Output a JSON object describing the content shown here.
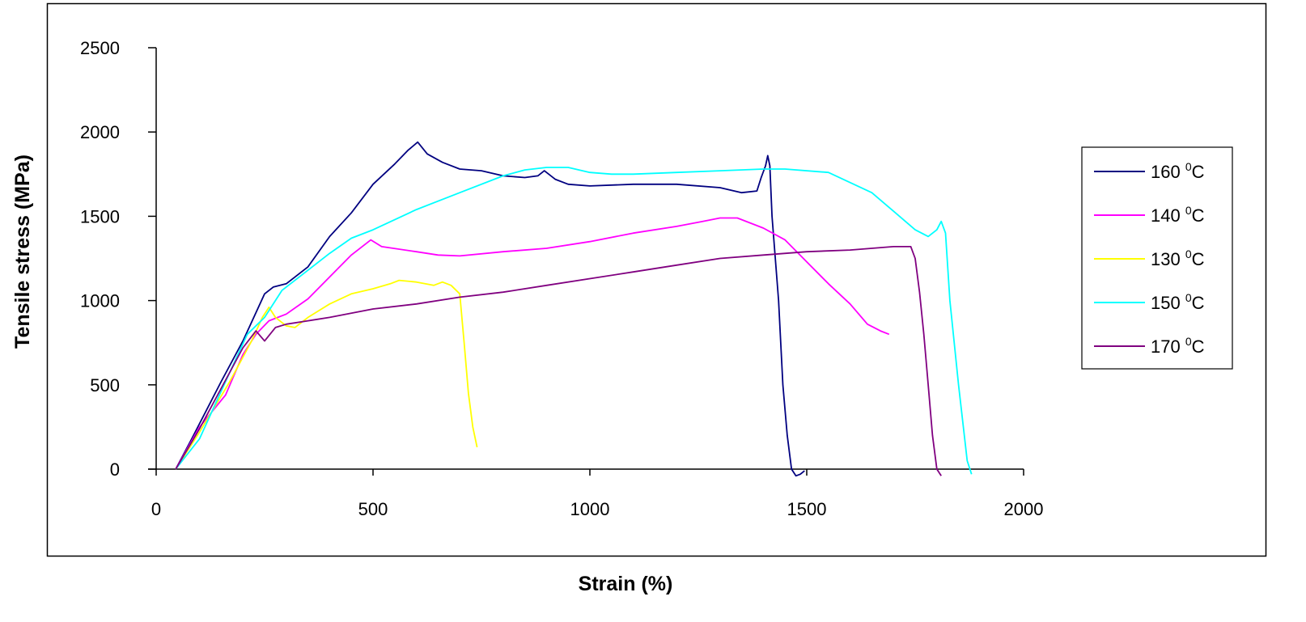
{
  "chart_data": {
    "type": "line",
    "title": "",
    "xlabel": "Strain (%)",
    "ylabel": "Tensile stress (MPa)",
    "xlim": [
      0,
      2000
    ],
    "ylim": [
      0,
      2500
    ],
    "x_ticks": [
      "0",
      "500",
      "1000",
      "1500",
      "2000"
    ],
    "y_ticks": [
      "0",
      "500",
      "1000",
      "1500",
      "2000",
      "2500"
    ],
    "grid": false,
    "legend_position": "right",
    "series": [
      {
        "name": "160",
        "name_sup": "0",
        "name_unit": "C",
        "color": "#000080",
        "points": [
          [
            45,
            0
          ],
          [
            80,
            170
          ],
          [
            150,
            520
          ],
          [
            200,
            760
          ],
          [
            250,
            1040
          ],
          [
            270,
            1080
          ],
          [
            300,
            1100
          ],
          [
            350,
            1200
          ],
          [
            400,
            1380
          ],
          [
            450,
            1520
          ],
          [
            500,
            1690
          ],
          [
            550,
            1810
          ],
          [
            580,
            1890
          ],
          [
            603,
            1940
          ],
          [
            625,
            1870
          ],
          [
            660,
            1820
          ],
          [
            700,
            1780
          ],
          [
            750,
            1770
          ],
          [
            800,
            1740
          ],
          [
            850,
            1730
          ],
          [
            880,
            1740
          ],
          [
            895,
            1770
          ],
          [
            920,
            1720
          ],
          [
            950,
            1690
          ],
          [
            1000,
            1680
          ],
          [
            1100,
            1690
          ],
          [
            1200,
            1690
          ],
          [
            1300,
            1670
          ],
          [
            1350,
            1640
          ],
          [
            1385,
            1650
          ],
          [
            1395,
            1730
          ],
          [
            1405,
            1800
          ],
          [
            1410,
            1860
          ],
          [
            1415,
            1800
          ],
          [
            1420,
            1500
          ],
          [
            1435,
            1000
          ],
          [
            1445,
            500
          ],
          [
            1455,
            200
          ],
          [
            1465,
            0
          ],
          [
            1475,
            -40
          ],
          [
            1485,
            -30
          ],
          [
            1495,
            -10
          ]
        ]
      },
      {
        "name": "140",
        "name_sup": "0",
        "name_unit": "C",
        "color": "#FF00FF",
        "points": [
          [
            45,
            0
          ],
          [
            100,
            250
          ],
          [
            160,
            440
          ],
          [
            200,
            680
          ],
          [
            230,
            800
          ],
          [
            260,
            880
          ],
          [
            300,
            920
          ],
          [
            350,
            1010
          ],
          [
            400,
            1140
          ],
          [
            450,
            1270
          ],
          [
            495,
            1360
          ],
          [
            520,
            1320
          ],
          [
            600,
            1290
          ],
          [
            650,
            1270
          ],
          [
            700,
            1265
          ],
          [
            800,
            1290
          ],
          [
            900,
            1310
          ],
          [
            1000,
            1350
          ],
          [
            1100,
            1400
          ],
          [
            1200,
            1440
          ],
          [
            1260,
            1470
          ],
          [
            1300,
            1490
          ],
          [
            1340,
            1490
          ],
          [
            1400,
            1430
          ],
          [
            1450,
            1360
          ],
          [
            1500,
            1230
          ],
          [
            1550,
            1100
          ],
          [
            1600,
            980
          ],
          [
            1640,
            860
          ],
          [
            1670,
            820
          ],
          [
            1690,
            800
          ]
        ]
      },
      {
        "name": "130",
        "name_sup": "0",
        "name_unit": "C",
        "color": "#FFFF00",
        "points": [
          [
            45,
            0
          ],
          [
            100,
            220
          ],
          [
            170,
            520
          ],
          [
            220,
            760
          ],
          [
            245,
            900
          ],
          [
            260,
            960
          ],
          [
            275,
            900
          ],
          [
            300,
            850
          ],
          [
            320,
            840
          ],
          [
            350,
            900
          ],
          [
            400,
            980
          ],
          [
            450,
            1040
          ],
          [
            500,
            1070
          ],
          [
            540,
            1100
          ],
          [
            560,
            1120
          ],
          [
            600,
            1110
          ],
          [
            640,
            1090
          ],
          [
            660,
            1110
          ],
          [
            680,
            1090
          ],
          [
            700,
            1040
          ],
          [
            710,
            750
          ],
          [
            720,
            450
          ],
          [
            730,
            250
          ],
          [
            740,
            130
          ]
        ]
      },
      {
        "name": "150",
        "name_sup": "0",
        "name_unit": "C",
        "color": "#00FFFF",
        "points": [
          [
            45,
            0
          ],
          [
            100,
            180
          ],
          [
            160,
            520
          ],
          [
            210,
            800
          ],
          [
            250,
            900
          ],
          [
            290,
            1060
          ],
          [
            350,
            1180
          ],
          [
            400,
            1280
          ],
          [
            450,
            1370
          ],
          [
            500,
            1420
          ],
          [
            600,
            1540
          ],
          [
            700,
            1640
          ],
          [
            800,
            1740
          ],
          [
            850,
            1775
          ],
          [
            900,
            1790
          ],
          [
            950,
            1790
          ],
          [
            1000,
            1760
          ],
          [
            1050,
            1750
          ],
          [
            1100,
            1750
          ],
          [
            1200,
            1760
          ],
          [
            1300,
            1770
          ],
          [
            1400,
            1780
          ],
          [
            1450,
            1780
          ],
          [
            1550,
            1760
          ],
          [
            1600,
            1700
          ],
          [
            1650,
            1640
          ],
          [
            1700,
            1530
          ],
          [
            1750,
            1420
          ],
          [
            1780,
            1380
          ],
          [
            1800,
            1420
          ],
          [
            1810,
            1470
          ],
          [
            1820,
            1400
          ],
          [
            1830,
            1000
          ],
          [
            1850,
            500
          ],
          [
            1870,
            50
          ],
          [
            1880,
            -30
          ]
        ]
      },
      {
        "name": "170",
        "name_sup": "0",
        "name_unit": "C",
        "color": "#800080",
        "points": [
          [
            45,
            0
          ],
          [
            100,
            240
          ],
          [
            150,
            480
          ],
          [
            200,
            720
          ],
          [
            230,
            820
          ],
          [
            250,
            760
          ],
          [
            275,
            840
          ],
          [
            300,
            860
          ],
          [
            350,
            880
          ],
          [
            400,
            900
          ],
          [
            500,
            950
          ],
          [
            600,
            980
          ],
          [
            700,
            1020
          ],
          [
            800,
            1050
          ],
          [
            900,
            1090
          ],
          [
            1000,
            1130
          ],
          [
            1100,
            1170
          ],
          [
            1200,
            1210
          ],
          [
            1300,
            1250
          ],
          [
            1400,
            1270
          ],
          [
            1500,
            1290
          ],
          [
            1600,
            1300
          ],
          [
            1700,
            1320
          ],
          [
            1740,
            1320
          ],
          [
            1750,
            1250
          ],
          [
            1760,
            1050
          ],
          [
            1770,
            800
          ],
          [
            1780,
            500
          ],
          [
            1790,
            200
          ],
          [
            1800,
            0
          ],
          [
            1810,
            -40
          ]
        ]
      }
    ]
  }
}
